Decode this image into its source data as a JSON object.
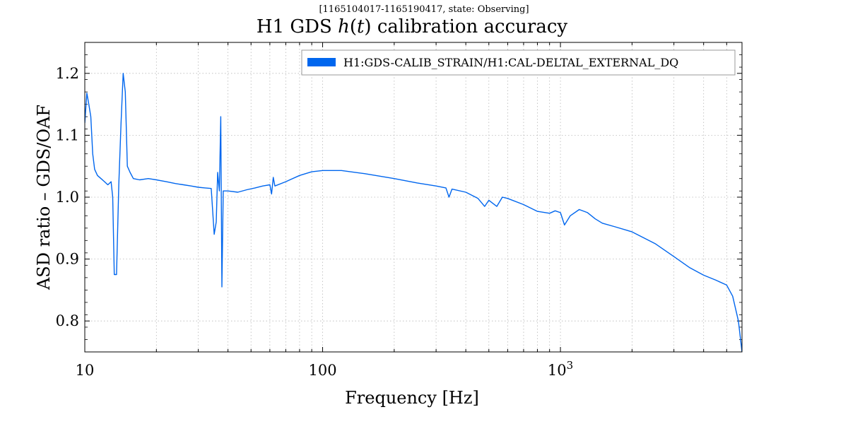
{
  "chart_data": {
    "type": "line",
    "subtitle": "[1165104017-1165190417, state: Observing]",
    "title_prefix": "H1 GDS ",
    "title_var": "h",
    "title_paren_open": "(",
    "title_arg": "t",
    "title_paren_close": ")",
    "title_suffix": " calibration accuracy",
    "xlabel": "Frequency [Hz]",
    "ylabel": "ASD ratio – GDS/OAF",
    "xscale": "log",
    "xlim": [
      10,
      5800
    ],
    "ylim": [
      0.75,
      1.25
    ],
    "grid": true,
    "legend_position": "top-right",
    "x_ticks": [
      {
        "value": 10,
        "label": "10"
      },
      {
        "value": 100,
        "label": "100"
      },
      {
        "value": 1000,
        "label": "10",
        "exponent": "3"
      }
    ],
    "y_ticks": [
      {
        "value": 0.8,
        "label": "0.8"
      },
      {
        "value": 0.9,
        "label": "0.9"
      },
      {
        "value": 1.0,
        "label": "1.0"
      },
      {
        "value": 1.1,
        "label": "1.1"
      },
      {
        "value": 1.2,
        "label": "1.2"
      }
    ],
    "series": [
      {
        "name": "H1:GDS-CALIB_STRAIN/H1:CAL-DELTAL_EXTERNAL_DQ",
        "color": "#0066ee",
        "points": [
          [
            10.0,
            1.12
          ],
          [
            10.2,
            1.168
          ],
          [
            10.4,
            1.15
          ],
          [
            10.6,
            1.13
          ],
          [
            10.8,
            1.07
          ],
          [
            11.0,
            1.045
          ],
          [
            11.3,
            1.035
          ],
          [
            11.7,
            1.03
          ],
          [
            12.1,
            1.025
          ],
          [
            12.5,
            1.02
          ],
          [
            12.9,
            1.025
          ],
          [
            13.1,
            1.0
          ],
          [
            13.3,
            0.875
          ],
          [
            13.6,
            0.875
          ],
          [
            13.9,
            1.02
          ],
          [
            14.2,
            1.12
          ],
          [
            14.5,
            1.2
          ],
          [
            14.8,
            1.17
          ],
          [
            15.1,
            1.05
          ],
          [
            15.5,
            1.04
          ],
          [
            16.0,
            1.03
          ],
          [
            17.0,
            1.028
          ],
          [
            18.5,
            1.03
          ],
          [
            20.0,
            1.028
          ],
          [
            22.0,
            1.025
          ],
          [
            24.0,
            1.022
          ],
          [
            26.0,
            1.02
          ],
          [
            28.0,
            1.018
          ],
          [
            30.0,
            1.016
          ],
          [
            32.0,
            1.015
          ],
          [
            34.0,
            1.014
          ],
          [
            35.0,
            0.94
          ],
          [
            35.7,
            0.96
          ],
          [
            36.2,
            1.04
          ],
          [
            36.8,
            1.01
          ],
          [
            37.3,
            1.13
          ],
          [
            37.7,
            0.855
          ],
          [
            38.2,
            1.01
          ],
          [
            40.0,
            1.01
          ],
          [
            44.0,
            1.008
          ],
          [
            48.0,
            1.012
          ],
          [
            52.0,
            1.015
          ],
          [
            56.0,
            1.018
          ],
          [
            60.0,
            1.02
          ],
          [
            61.0,
            1.005
          ],
          [
            62.0,
            1.032
          ],
          [
            63.0,
            1.018
          ],
          [
            70.0,
            1.025
          ],
          [
            80.0,
            1.035
          ],
          [
            90.0,
            1.041
          ],
          [
            100.0,
            1.043
          ],
          [
            120.0,
            1.043
          ],
          [
            150.0,
            1.038
          ],
          [
            200.0,
            1.03
          ],
          [
            250.0,
            1.023
          ],
          [
            300.0,
            1.018
          ],
          [
            330.0,
            1.015
          ],
          [
            340.0,
            1.0
          ],
          [
            350.0,
            1.013
          ],
          [
            400.0,
            1.008
          ],
          [
            450.0,
            0.998
          ],
          [
            480.0,
            0.985
          ],
          [
            500.0,
            0.995
          ],
          [
            540.0,
            0.985
          ],
          [
            570.0,
            1.0
          ],
          [
            600.0,
            0.998
          ],
          [
            700.0,
            0.988
          ],
          [
            800.0,
            0.977
          ],
          [
            900.0,
            0.974
          ],
          [
            950.0,
            0.978
          ],
          [
            1000.0,
            0.975
          ],
          [
            1040.0,
            0.955
          ],
          [
            1100.0,
            0.97
          ],
          [
            1200.0,
            0.98
          ],
          [
            1300.0,
            0.975
          ],
          [
            1400.0,
            0.965
          ],
          [
            1500.0,
            0.958
          ],
          [
            1700.0,
            0.952
          ],
          [
            2000.0,
            0.944
          ],
          [
            2500.0,
            0.925
          ],
          [
            3000.0,
            0.904
          ],
          [
            3500.0,
            0.886
          ],
          [
            4000.0,
            0.874
          ],
          [
            4500.0,
            0.866
          ],
          [
            5000.0,
            0.858
          ],
          [
            5300.0,
            0.84
          ],
          [
            5600.0,
            0.8
          ],
          [
            5800.0,
            0.75
          ]
        ]
      }
    ]
  }
}
